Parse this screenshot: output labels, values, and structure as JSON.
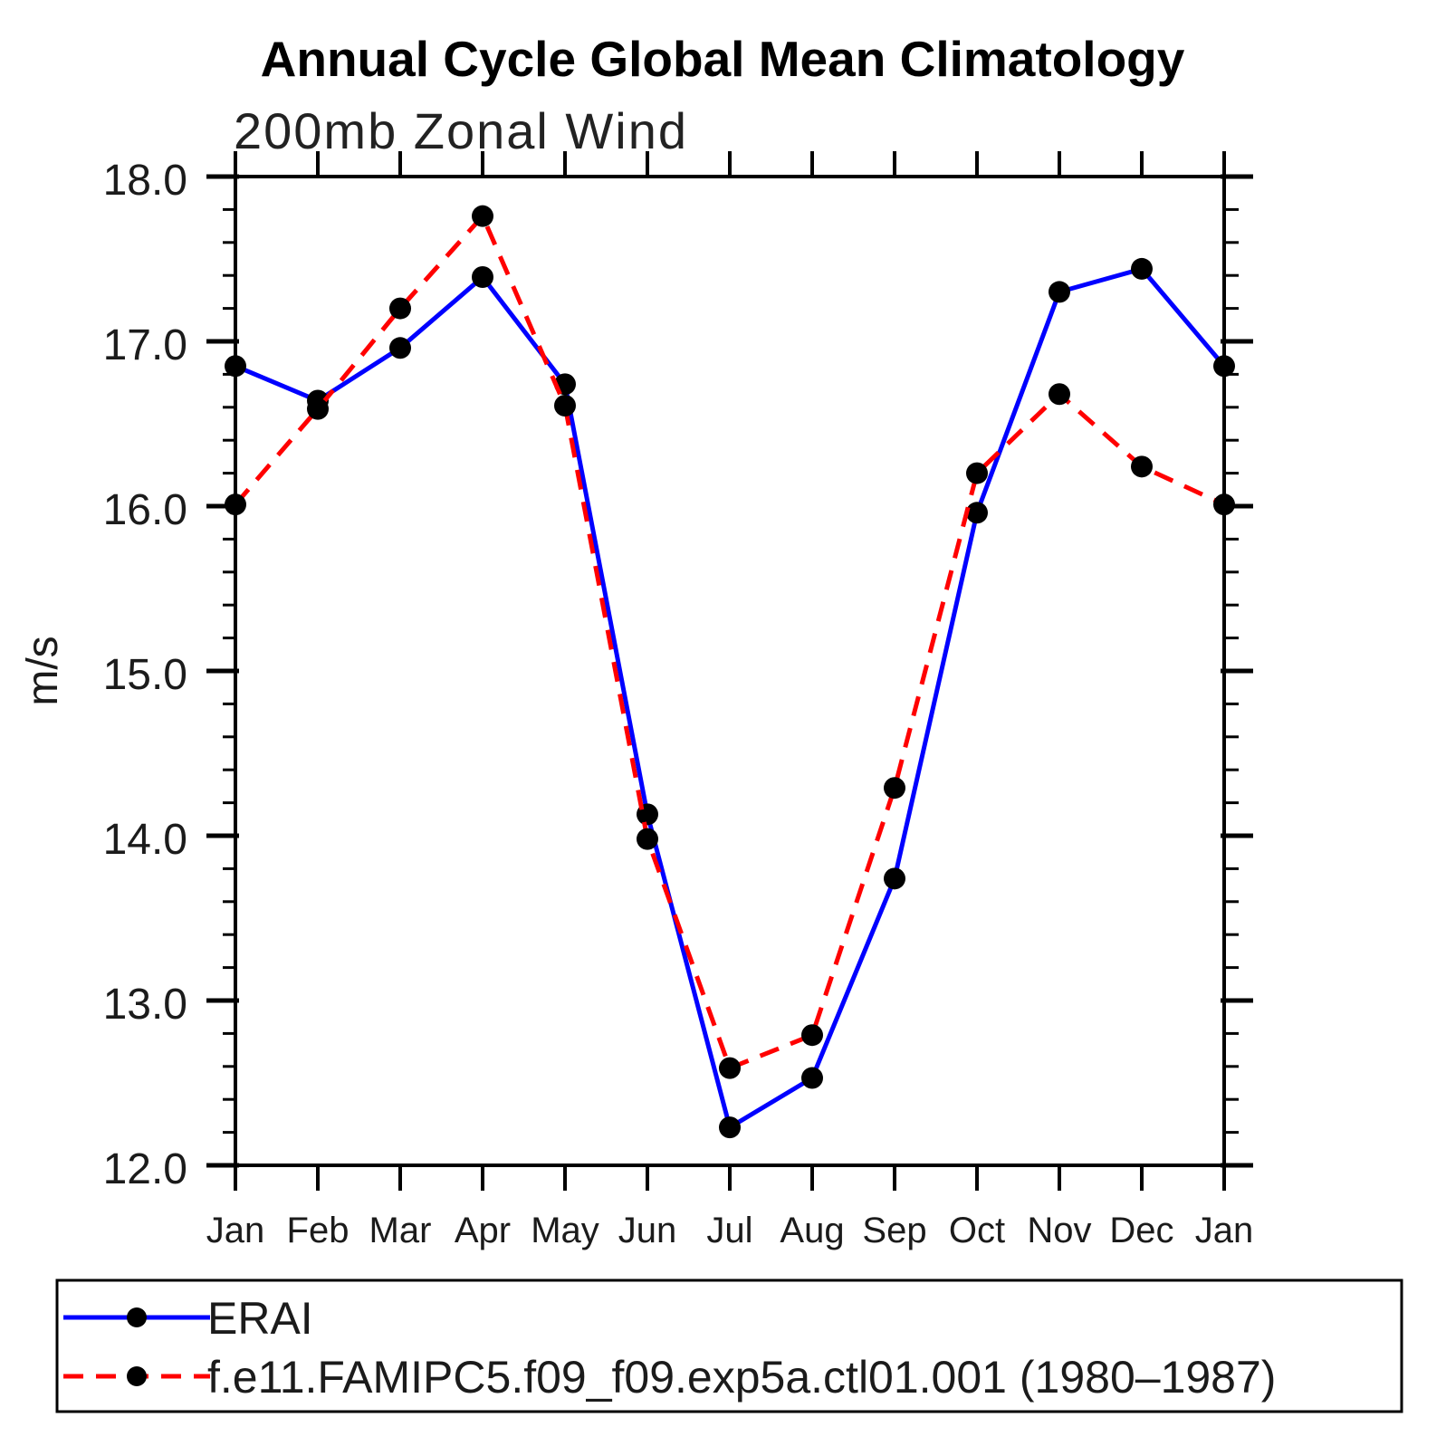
{
  "title": "Annual Cycle Global Mean Climatology",
  "subtitle": "200mb Zonal Wind",
  "chart_data": {
    "type": "line",
    "x_categories": [
      "Jan",
      "Feb",
      "Mar",
      "Apr",
      "May",
      "Jun",
      "Jul",
      "Aug",
      "Sep",
      "Oct",
      "Nov",
      "Dec",
      "Jan"
    ],
    "ylabel": "m/s",
    "ylim": [
      12.0,
      18.0
    ],
    "ytick_interval": 1.0,
    "y_minor_tick_interval": 0.2,
    "ytick_labels": [
      "12.0",
      "13.0",
      "14.0",
      "15.0",
      "16.0",
      "17.0",
      "18.0"
    ],
    "grid": false,
    "legend_position": "bottom-left-box",
    "series": [
      {
        "name": "ERAI",
        "color": "#0000ff",
        "line_style": "solid",
        "marker": "filled-circle",
        "marker_color": "#000000",
        "values": [
          16.85,
          16.64,
          16.96,
          17.39,
          16.74,
          14.13,
          12.23,
          12.53,
          13.74,
          15.96,
          17.3,
          17.44,
          16.85
        ]
      },
      {
        "name": "f.e11.FAMIPC5.f09_f09.exp5a.ctl01.001 (1980–1987)",
        "color": "#ff0000",
        "line_style": "dashed",
        "marker": "filled-circle",
        "marker_color": "#000000",
        "values": [
          16.01,
          16.59,
          17.2,
          17.76,
          16.61,
          13.98,
          12.59,
          12.79,
          14.29,
          16.2,
          16.68,
          16.24,
          16.01
        ]
      }
    ]
  }
}
